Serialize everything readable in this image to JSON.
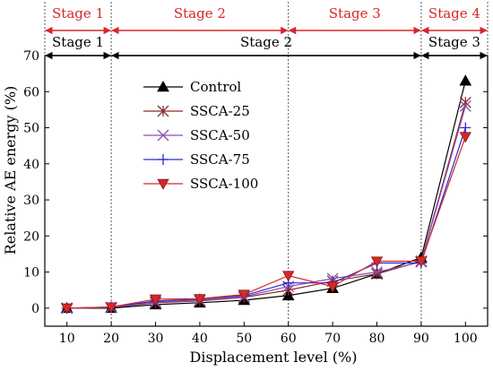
{
  "chart_data": {
    "type": "line",
    "xlabel": "Displacement level (%)",
    "ylabel": "Relative AE energy (%)",
    "xlim": [
      5,
      105
    ],
    "ylim": [
      -5,
      70
    ],
    "categories": [
      10,
      20,
      30,
      40,
      50,
      60,
      70,
      80,
      90,
      100
    ],
    "y_ticks": [
      0,
      10,
      20,
      30,
      40,
      50,
      60,
      70
    ],
    "grid": false,
    "legend_position": "upper-left",
    "stage_dividers": [
      20,
      60,
      90
    ],
    "stages_top": [
      {
        "label": "Stage 1",
        "from": 5,
        "to": 20
      },
      {
        "label": "Stage 2",
        "from": 20,
        "to": 60
      },
      {
        "label": "Stage 3",
        "from": 60,
        "to": 90
      },
      {
        "label": "Stage 4",
        "from": 90,
        "to": 105
      }
    ],
    "stages_inner": [
      {
        "label": "Stage 1",
        "from": 5,
        "to": 20
      },
      {
        "label": "Stage 2",
        "from": 20,
        "to": 90
      },
      {
        "label": "Stage 3",
        "from": 90,
        "to": 105
      }
    ],
    "series": [
      {
        "name": "Control",
        "color": "#000000",
        "marker": "triangle-up",
        "values": [
          0,
          0,
          1.0,
          1.5,
          2.2,
          3.5,
          5.5,
          9.5,
          14.0,
          63.0
        ]
      },
      {
        "name": "SSCA-25",
        "color": "#8b2a2a",
        "marker": "star",
        "values": [
          0,
          0.2,
          1.5,
          2.0,
          3.0,
          5.0,
          7.5,
          9.5,
          13.0,
          57.0
        ]
      },
      {
        "name": "SSCA-50",
        "color": "#8a4fb0",
        "marker": "x",
        "values": [
          0,
          0.2,
          1.8,
          2.2,
          3.2,
          6.0,
          8.2,
          10.0,
          12.8,
          56.0
        ]
      },
      {
        "name": "SSCA-75",
        "color": "#2a2ad6",
        "marker": "plus",
        "values": [
          0,
          0.3,
          2.0,
          2.5,
          3.5,
          7.0,
          7.0,
          12.5,
          12.5,
          50.0
        ]
      },
      {
        "name": "SSCA-100",
        "color": "#d62828",
        "marker": "triangle-down",
        "values": [
          0,
          0.3,
          2.5,
          2.6,
          3.8,
          9.0,
          6.0,
          13.0,
          13.0,
          47.5
        ]
      }
    ],
    "colors": {
      "stage_accent": "#d62828",
      "axis": "#000000"
    }
  }
}
